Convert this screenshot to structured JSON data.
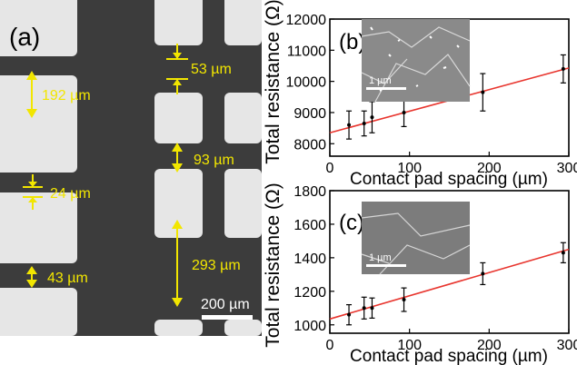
{
  "panel_a": {
    "label": "(a)",
    "annotations": [
      {
        "text": "192 µm"
      },
      {
        "text": "53 µm"
      },
      {
        "text": "93 µm"
      },
      {
        "text": "24 µm"
      },
      {
        "text": "43 µm"
      },
      {
        "text": "293 µm"
      }
    ],
    "scalebar_label": "200 µm",
    "annotation_color": "#f2e600"
  },
  "chart_data": [
    {
      "type": "scatter",
      "panel_label": "(b)",
      "xlabel": "Contact pad spacing (µm)",
      "ylabel": "Total resistance (Ω)",
      "xlim": [
        0,
        300
      ],
      "ylim": [
        7600,
        12000
      ],
      "xticks": [
        "0",
        "100",
        "200",
        "300"
      ],
      "yticks": [
        "8000",
        "9000",
        "10000",
        "11000",
        "12000"
      ],
      "ytick_values": [
        8000,
        9000,
        10000,
        11000,
        12000
      ],
      "xtick_values": [
        0,
        100,
        200,
        300
      ],
      "x": [
        24,
        43,
        53,
        93,
        192,
        293
      ],
      "y": [
        8600,
        8650,
        8850,
        9000,
        9650,
        10400
      ],
      "yerr": [
        450,
        400,
        500,
        450,
        600,
        450
      ],
      "fit": {
        "x": [
          0,
          300
        ],
        "y": [
          8350,
          10430
        ],
        "color": "#e8352e"
      },
      "inset_scalebar": "1 µm"
    },
    {
      "type": "scatter",
      "panel_label": "(c)",
      "xlabel": "Contact pad spacing (µm)",
      "ylabel": "Total resistance (Ω)",
      "xlim": [
        0,
        300
      ],
      "ylim": [
        950,
        1800
      ],
      "xticks": [
        "0",
        "100",
        "200",
        "300"
      ],
      "yticks": [
        "1000",
        "1200",
        "1400",
        "1600",
        "1800"
      ],
      "ytick_values": [
        1000,
        1200,
        1400,
        1600,
        1800
      ],
      "xtick_values": [
        0,
        100,
        200,
        300
      ],
      "x": [
        24,
        43,
        53,
        93,
        192,
        293
      ],
      "y": [
        1060,
        1100,
        1100,
        1150,
        1305,
        1430
      ],
      "yerr": [
        60,
        65,
        60,
        70,
        65,
        60
      ],
      "fit": {
        "x": [
          0,
          300
        ],
        "y": [
          1035,
          1450
        ],
        "color": "#e8352e"
      },
      "inset_scalebar": "1 µm"
    }
  ]
}
